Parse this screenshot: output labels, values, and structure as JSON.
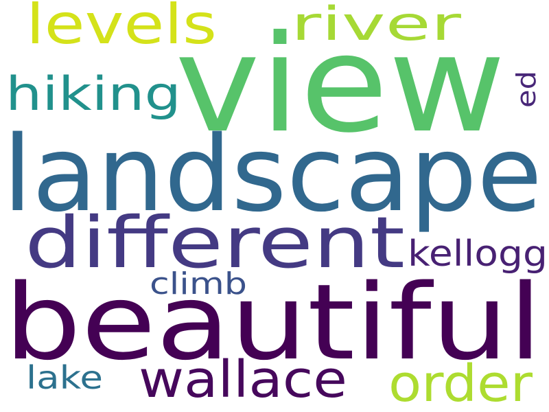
{
  "word_cloud": {
    "background": "#ffffff",
    "colormap": "viridis",
    "words": [
      {
        "text": "view",
        "color": "#57c36a"
      },
      {
        "text": "landscape",
        "color": "#31688e"
      },
      {
        "text": "beautiful",
        "color": "#440154"
      },
      {
        "text": "different",
        "color": "#443a83"
      },
      {
        "text": "levels",
        "color": "#d4e21a"
      },
      {
        "text": "river",
        "color": "#a6d935"
      },
      {
        "text": "hiking",
        "color": "#21918c"
      },
      {
        "text": "ed",
        "color": "#482778"
      },
      {
        "text": "kellogg",
        "color": "#482173"
      },
      {
        "text": "climb",
        "color": "#3b528b"
      },
      {
        "text": "wallace",
        "color": "#46085c"
      },
      {
        "text": "order",
        "color": "#addc30"
      },
      {
        "text": "lake",
        "color": "#2c718e"
      }
    ]
  }
}
